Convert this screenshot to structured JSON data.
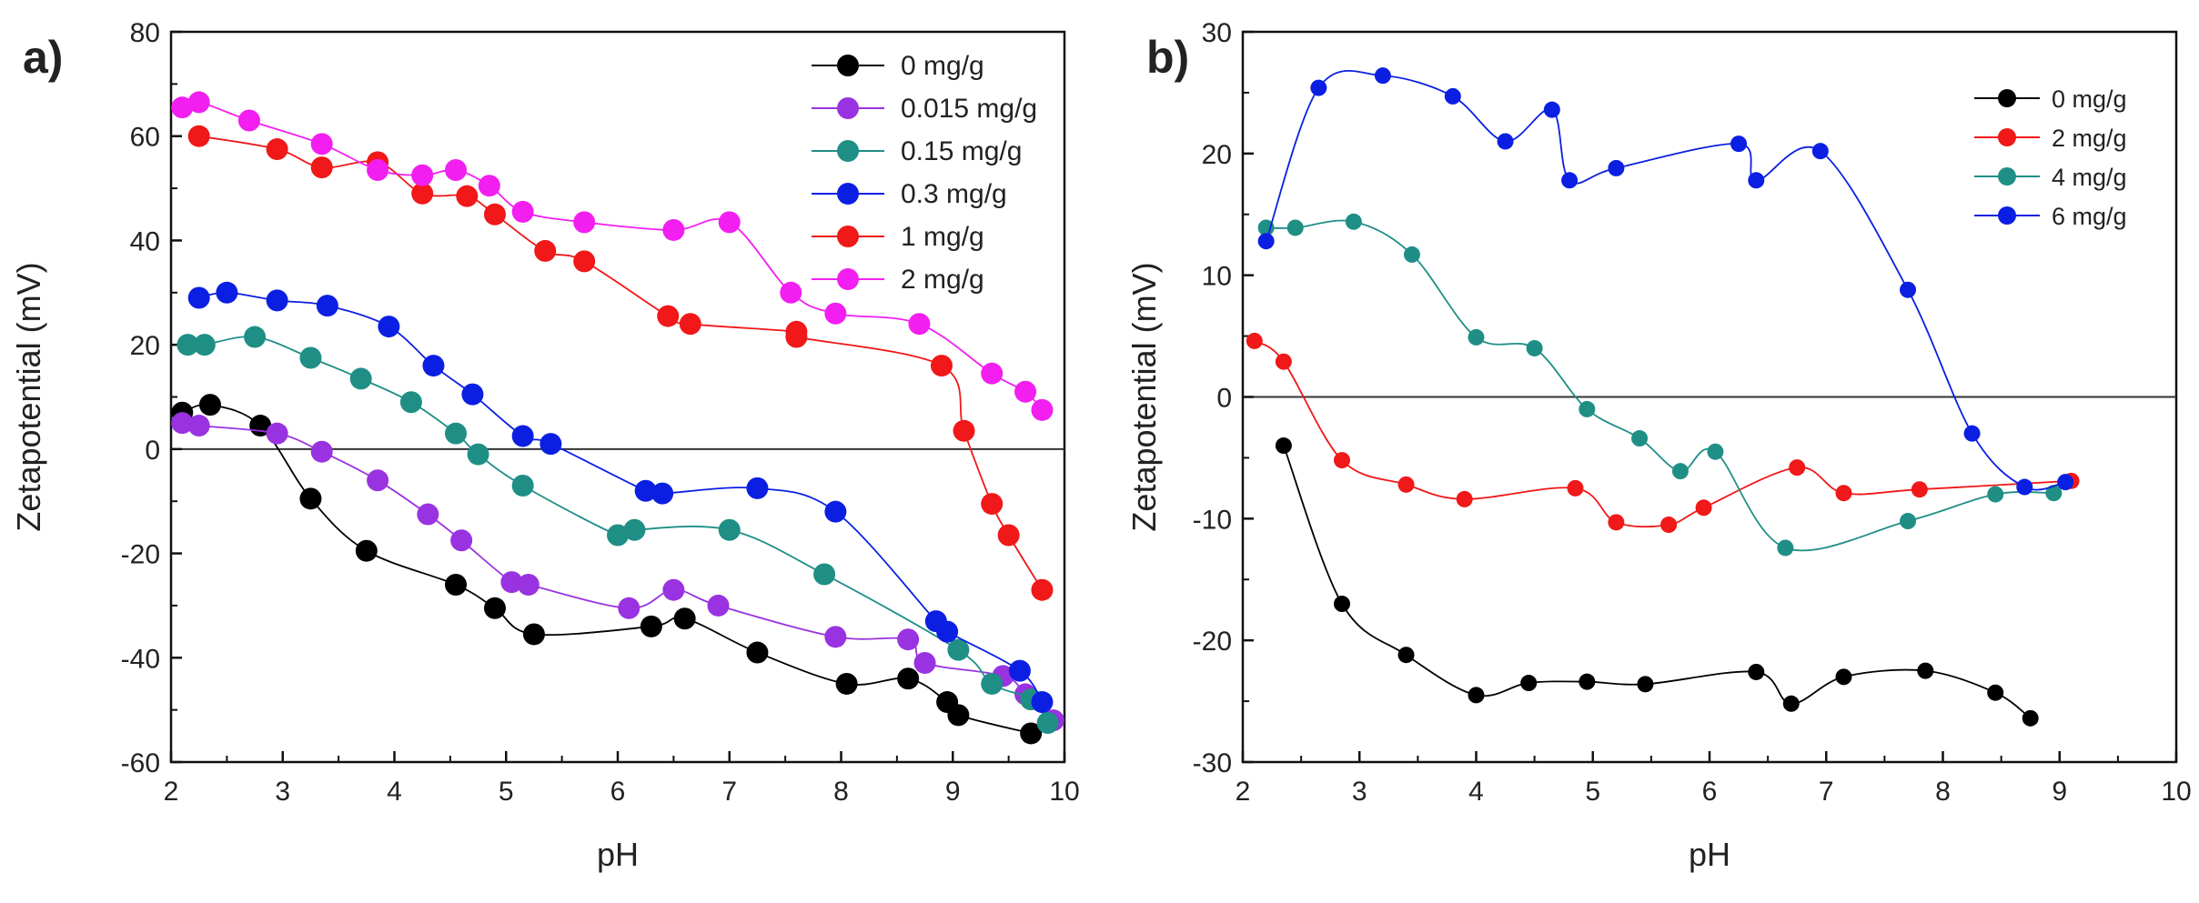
{
  "chart_data": [
    {
      "panel_label": "a)",
      "type": "scatter",
      "xlabel": "pH",
      "ylabel": "Zetapotential (mV)",
      "xlim": [
        2,
        10
      ],
      "ylim": [
        -60,
        80
      ],
      "xticks": [
        2,
        3,
        4,
        5,
        6,
        7,
        8,
        9,
        10
      ],
      "yticks": [
        -60,
        -40,
        -20,
        0,
        20,
        40,
        60,
        80
      ],
      "zero_line": true,
      "legend_position": "top-right",
      "series": [
        {
          "name": "0 mg/g",
          "color": "#000000",
          "x": [
            2.1,
            2.35,
            2.8,
            3.25,
            3.75,
            4.55,
            4.9,
            5.25,
            6.3,
            6.6,
            7.25,
            8.05,
            8.6,
            8.95,
            9.05,
            9.7
          ],
          "y": [
            7,
            8.5,
            4.5,
            -9.5,
            -19.5,
            -26,
            -30.5,
            -35.5,
            -34,
            -32.5,
            -39,
            -45,
            -44,
            -48.5,
            -51,
            -54.5
          ]
        },
        {
          "name": "0.015 mg/g",
          "color": "#9932e0",
          "x": [
            2.1,
            2.25,
            2.95,
            3.35,
            3.85,
            4.3,
            4.6,
            5.05,
            5.2,
            6.1,
            6.5,
            6.9,
            7.95,
            8.6,
            8.75,
            9.45,
            9.65,
            9.9
          ],
          "y": [
            5,
            4.5,
            3,
            -0.5,
            -6,
            -12.5,
            -17.5,
            -25.5,
            -26,
            -30.5,
            -27,
            -30,
            -36,
            -36.5,
            -41,
            -43.5,
            -47,
            -52
          ]
        },
        {
          "name": "0.15 mg/g",
          "color": "#1f8f86",
          "x": [
            2.15,
            2.3,
            2.75,
            3.25,
            3.7,
            4.15,
            4.55,
            4.75,
            5.15,
            6.0,
            6.15,
            7.0,
            7.85,
            9.05,
            9.35,
            9.7,
            9.85
          ],
          "y": [
            20,
            20,
            21.5,
            17.5,
            13.5,
            9,
            3,
            -1,
            -7,
            -16.5,
            -15.5,
            -15.5,
            -24,
            -38.5,
            -45,
            -48,
            -52.5
          ]
        },
        {
          "name": "0.3 mg/g",
          "color": "#0b1fe3",
          "x": [
            2.25,
            2.5,
            2.95,
            3.4,
            3.95,
            4.35,
            4.7,
            5.15,
            5.4,
            6.25,
            6.4,
            7.25,
            7.95,
            8.85,
            8.95,
            9.6,
            9.8
          ],
          "y": [
            29,
            30,
            28.5,
            27.5,
            23.5,
            16,
            10.5,
            2.5,
            1,
            -8,
            -8.5,
            -7.5,
            -12,
            -33,
            -35,
            -42.5,
            -48.5
          ]
        },
        {
          "name": "1 mg/g",
          "color": "#f01818",
          "x": [
            2.25,
            2.95,
            3.35,
            3.85,
            4.25,
            4.65,
            4.9,
            5.35,
            5.7,
            6.45,
            6.65,
            7.6,
            7.6,
            8.9,
            9.1,
            9.35,
            9.5,
            9.8
          ],
          "y": [
            60,
            57.5,
            54,
            55,
            49,
            48.5,
            45,
            38,
            36,
            25.5,
            24,
            22.5,
            21.5,
            16,
            3.5,
            -10.5,
            -16.5,
            -27
          ]
        },
        {
          "name": "2 mg/g",
          "color": "#f21ff0",
          "x": [
            2.1,
            2.25,
            2.7,
            3.35,
            3.85,
            4.25,
            4.55,
            4.85,
            5.15,
            5.7,
            6.5,
            7.0,
            7.55,
            7.95,
            8.7,
            9.35,
            9.65,
            9.8
          ],
          "y": [
            65.5,
            66.5,
            63,
            58.5,
            53.5,
            52.5,
            53.5,
            50.5,
            45.5,
            43.5,
            42,
            43.5,
            30,
            26,
            24,
            14.5,
            11,
            7.5
          ]
        }
      ]
    },
    {
      "panel_label": "b)",
      "type": "scatter",
      "xlabel": "pH",
      "ylabel": "Zetapotential (mV)",
      "xlim": [
        2,
        10
      ],
      "ylim": [
        -30,
        30
      ],
      "xticks": [
        2,
        3,
        4,
        5,
        6,
        7,
        8,
        9,
        10
      ],
      "yticks": [
        -30,
        -20,
        -10,
        0,
        10,
        20,
        30
      ],
      "zero_line": true,
      "legend_position": "top-right",
      "series": [
        {
          "name": "0 mg/g",
          "color": "#000000",
          "x": [
            2.35,
            2.85,
            3.4,
            4.0,
            4.45,
            4.95,
            5.45,
            6.4,
            6.7,
            7.15,
            7.85,
            8.45,
            8.75
          ],
          "y": [
            -4,
            -17,
            -21.2,
            -24.5,
            -23.5,
            -23.4,
            -23.6,
            -22.6,
            -25.2,
            -23,
            -22.5,
            -24.3,
            -26.4
          ]
        },
        {
          "name": "2 mg/g",
          "color": "#f01818",
          "x": [
            2.1,
            2.35,
            2.85,
            3.4,
            3.9,
            4.85,
            5.2,
            5.65,
            5.95,
            6.75,
            7.15,
            7.8,
            9.1
          ],
          "y": [
            4.6,
            2.9,
            -5.2,
            -7.2,
            -8.4,
            -7.5,
            -10.3,
            -10.5,
            -9.1,
            -5.8,
            -7.9,
            -7.6,
            -6.9
          ]
        },
        {
          "name": "4 mg/g",
          "color": "#1f8f86",
          "x": [
            2.2,
            2.45,
            2.95,
            3.45,
            4.0,
            4.5,
            4.95,
            5.4,
            5.75,
            6.05,
            6.65,
            7.7,
            8.45,
            8.95
          ],
          "y": [
            13.9,
            13.9,
            14.4,
            11.7,
            4.9,
            4.0,
            -1.0,
            -3.4,
            -6.1,
            -4.5,
            -12.4,
            -10.2,
            -8.0,
            -7.9
          ]
        },
        {
          "name": "6 mg/g",
          "color": "#0b1fe3",
          "x": [
            2.2,
            2.65,
            3.2,
            3.8,
            4.25,
            4.65,
            4.8,
            5.2,
            6.25,
            6.4,
            6.95,
            7.7,
            8.25,
            8.7,
            9.05
          ],
          "y": [
            12.8,
            25.4,
            26.4,
            24.7,
            21.0,
            23.6,
            17.8,
            18.8,
            20.8,
            17.8,
            20.2,
            8.8,
            -3.0,
            -7.4,
            -7.0
          ]
        }
      ]
    }
  ]
}
